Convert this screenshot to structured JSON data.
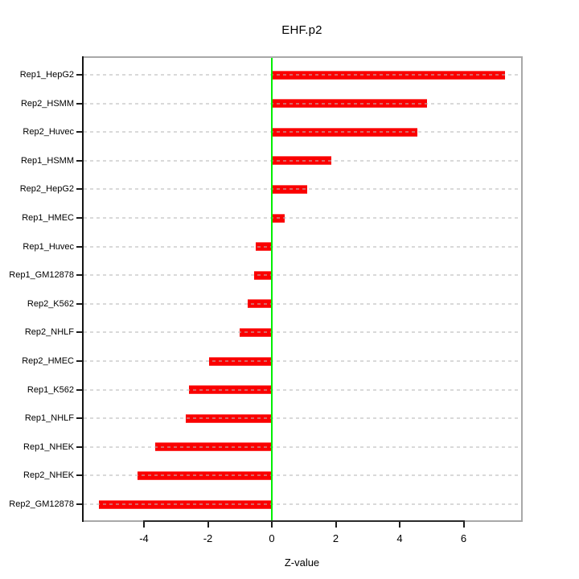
{
  "chart_data": {
    "type": "bar",
    "orientation": "horizontal",
    "title": "EHF.p2",
    "xlabel": "Z-value",
    "ylabel": "",
    "categories": [
      "Rep1_HepG2",
      "Rep2_HSMM",
      "Rep2_Huvec",
      "Rep1_HSMM",
      "Rep2_HepG2",
      "Rep1_HMEC",
      "Rep1_Huvec",
      "Rep1_GM12878",
      "Rep2_K562",
      "Rep2_NHLF",
      "Rep2_HMEC",
      "Rep1_K562",
      "Rep1_NHLF",
      "Rep1_NHEK",
      "Rep2_NHEK",
      "Rep2_GM12878"
    ],
    "values": [
      7.3,
      4.85,
      4.55,
      1.85,
      1.1,
      0.4,
      -0.5,
      -0.55,
      -0.75,
      -1.0,
      -1.95,
      -2.6,
      -2.7,
      -3.65,
      -4.2,
      -5.4
    ],
    "xlim": [
      -5.9,
      7.8
    ],
    "xticks": [
      -4,
      -2,
      0,
      2,
      4,
      6
    ],
    "grid": "dotted horizontal line per category, drawn over bars",
    "legend": null,
    "colors": {
      "bar": "#fa0000",
      "bar_grid_overlay": "rgba(255,255,255,0.45)",
      "zero_line": "#00ee00",
      "box_border": "#a8a8a8",
      "axis": "#141414",
      "text": "#000000"
    }
  }
}
